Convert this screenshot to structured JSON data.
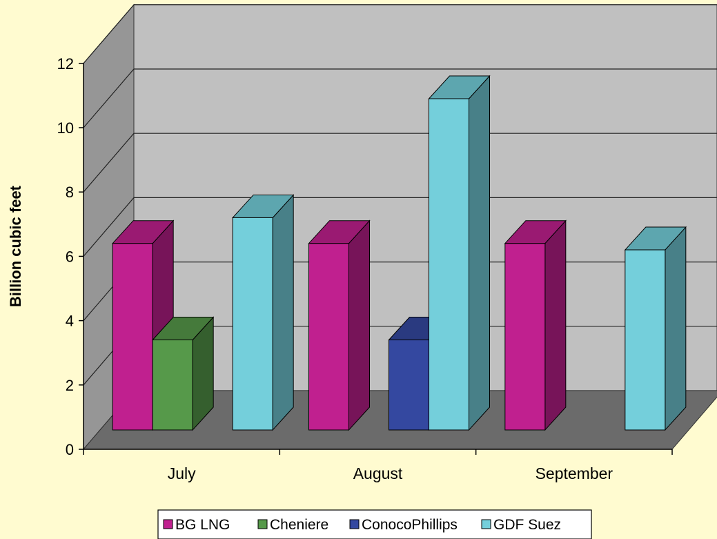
{
  "chart_data": {
    "type": "bar",
    "style": "3d-clustered-column",
    "categories": [
      "July",
      "August",
      "September"
    ],
    "series": [
      {
        "name": "BG LNG",
        "color": "#c0208f",
        "values": [
          5.8,
          5.8,
          5.8
        ]
      },
      {
        "name": "Cheniere",
        "color": "#56994a",
        "values": [
          2.8,
          null,
          null
        ]
      },
      {
        "name": "ConocoPhillips",
        "color": "#3448a0",
        "values": [
          null,
          2.8,
          null
        ]
      },
      {
        "name": "GDF Suez",
        "color": "#74cfdb",
        "values": [
          6.6,
          10.3,
          5.6
        ]
      }
    ],
    "ylabel": "Billion cubic feet",
    "xlabel": "",
    "ylim": [
      0,
      12
    ],
    "yticks": [
      0,
      2,
      4,
      6,
      8,
      10,
      12
    ],
    "grid": true,
    "legend_position": "bottom",
    "colors": {
      "background": "#fffbd0",
      "wall": "#c0c0c0",
      "side_wall": "#969696",
      "floor": "#6b6b6b"
    }
  }
}
